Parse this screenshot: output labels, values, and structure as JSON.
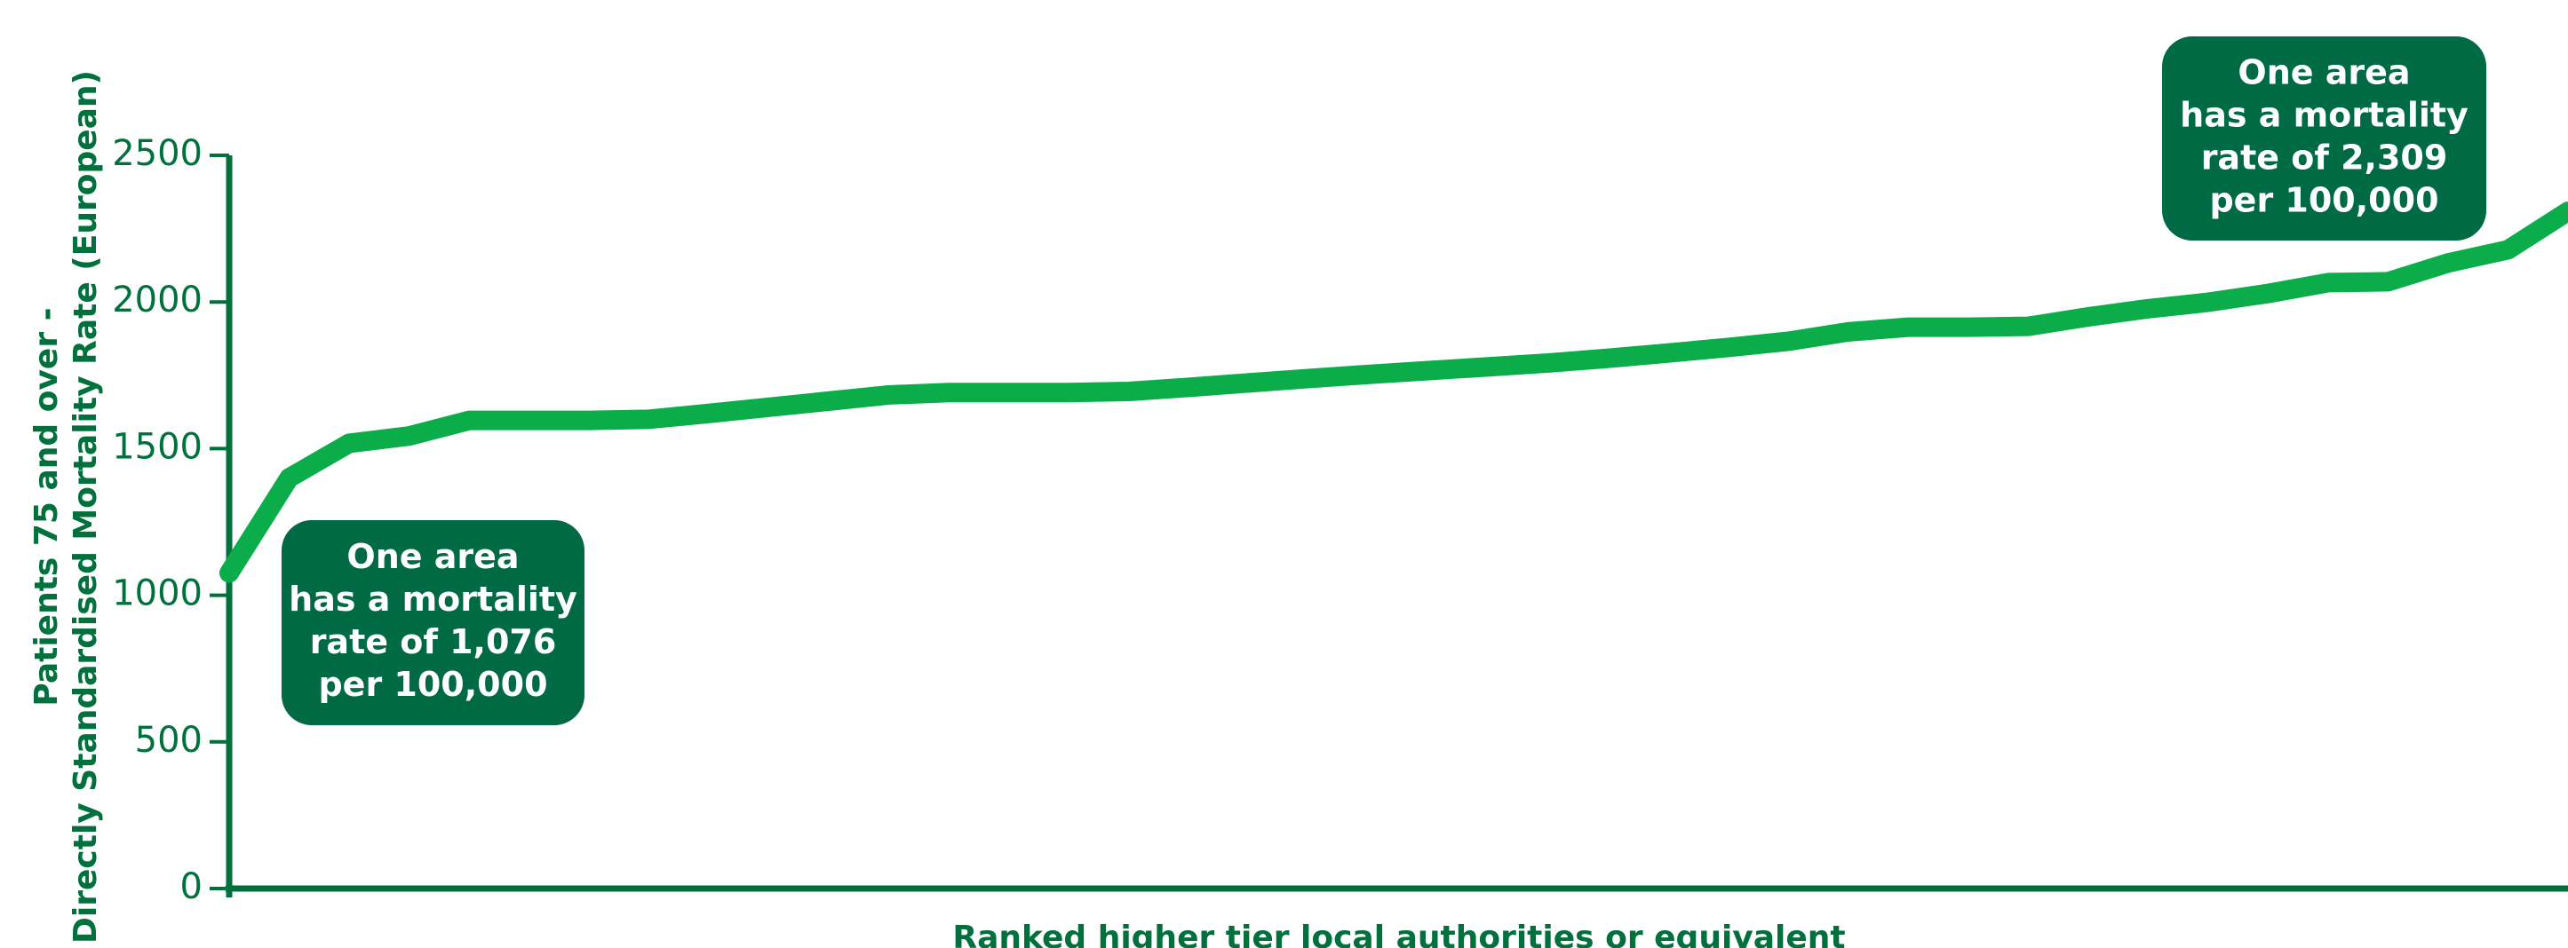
{
  "chart_data": {
    "type": "line",
    "x_label": "Ranked higher tier local authorities or equivalent",
    "y_label": [
      "Patients 75 and over -",
      "Directly Standardised Mortality Rate (European)"
    ],
    "categories": [
      null,
      null,
      null,
      null,
      null,
      null,
      null,
      null,
      null,
      null,
      null,
      null,
      null,
      null,
      null,
      null,
      null,
      null,
      null,
      null,
      null,
      null,
      null,
      null,
      null,
      null,
      null,
      null,
      null,
      null,
      null,
      null,
      null,
      null,
      null,
      null,
      null,
      null,
      null,
      null
    ],
    "values": [
      1076,
      1400,
      1518,
      1543,
      1596,
      1596,
      1596,
      1600,
      1620,
      1641,
      1662,
      1683,
      1691,
      1691,
      1691,
      1695,
      1709,
      1724,
      1739,
      1753,
      1766,
      1779,
      1792,
      1808,
      1826,
      1845,
      1866,
      1898,
      1914,
      1914,
      1917,
      1949,
      1977,
      1999,
      2029,
      2066,
      2069,
      2133,
      2178,
      2309
    ],
    "color": "#0aad4a",
    "ylim": [
      0,
      2500
    ],
    "yticks": [
      0,
      500,
      1000,
      1500,
      2000,
      2500
    ],
    "annotations": [
      {
        "text": [
          "One area",
          "has a mortality",
          "rate of 1,076",
          "per 100,000"
        ]
      },
      {
        "text": [
          "One area",
          "has a mortality",
          "rate of 2,309",
          "per 100,000"
        ]
      }
    ]
  }
}
